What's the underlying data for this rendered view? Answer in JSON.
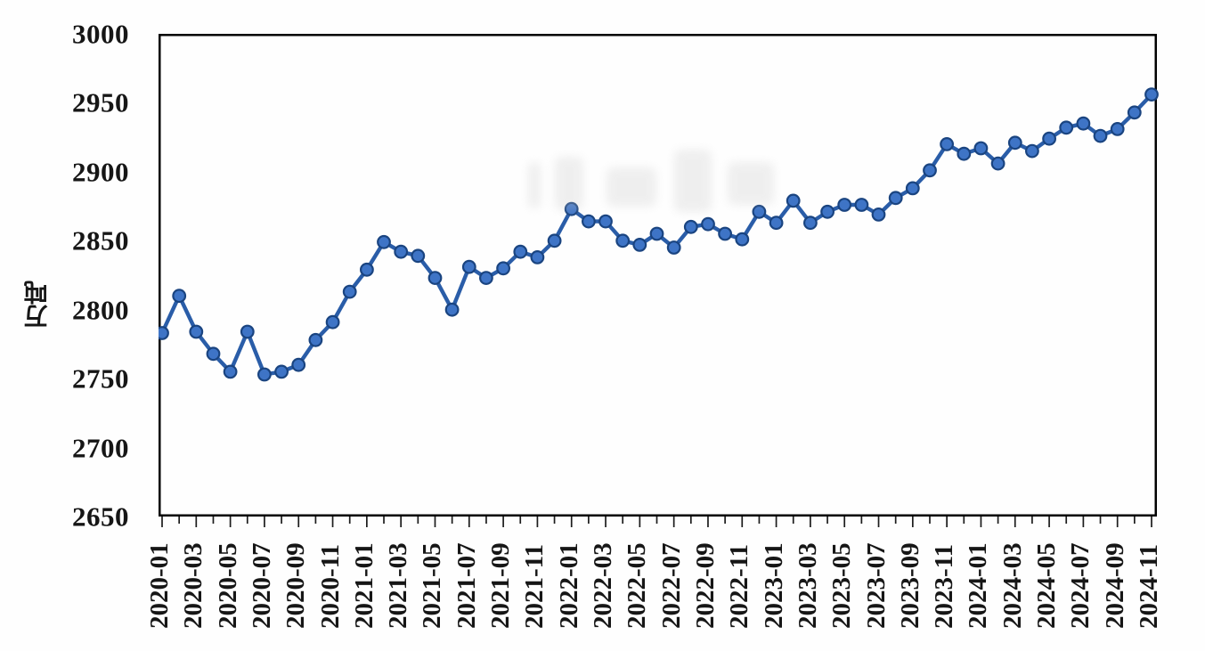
{
  "chart_data": {
    "type": "line",
    "title": "",
    "xlabel": "",
    "ylabel": "万吨",
    "ylim": [
      2650,
      3000
    ],
    "ytick_interval": 50,
    "yticks": [
      2650,
      2700,
      2750,
      2800,
      2850,
      2900,
      2950,
      3000
    ],
    "grid": "off",
    "legend": "none",
    "x": [
      "2020-01",
      "2020-02",
      "2020-03",
      "2020-04",
      "2020-05",
      "2020-06",
      "2020-07",
      "2020-08",
      "2020-09",
      "2020-10",
      "2020-11",
      "2020-12",
      "2021-01",
      "2021-02",
      "2021-03",
      "2021-04",
      "2021-05",
      "2021-06",
      "2021-07",
      "2021-08",
      "2021-09",
      "2021-10",
      "2021-11",
      "2021-12",
      "2022-01",
      "2022-02",
      "2022-03",
      "2022-04",
      "2022-05",
      "2022-06",
      "2022-07",
      "2022-08",
      "2022-09",
      "2022-10",
      "2022-11",
      "2022-12",
      "2023-01",
      "2023-02",
      "2023-03",
      "2023-04",
      "2023-05",
      "2023-06",
      "2023-07",
      "2023-08",
      "2023-09",
      "2023-10",
      "2023-11",
      "2023-12",
      "2024-01",
      "2024-02",
      "2024-03",
      "2024-04",
      "2024-05",
      "2024-06",
      "2024-07",
      "2024-08",
      "2024-09",
      "2024-10",
      "2024-11"
    ],
    "xtick_labels": [
      "2020-01",
      "2020-03",
      "2020-05",
      "2020-07",
      "2020-09",
      "2020-11",
      "2021-01",
      "2021-03",
      "2021-05",
      "2021-07",
      "2021-09",
      "2021-11",
      "2022-01",
      "2022-03",
      "2022-05",
      "2022-07",
      "2022-09",
      "2022-11",
      "2023-01",
      "2023-03",
      "2023-05",
      "2023-07",
      "2023-09",
      "2023-11",
      "2024-01",
      "2024-03",
      "2024-05",
      "2024-07",
      "2024-09",
      "2024-11"
    ],
    "series": [
      {
        "name": "",
        "values": [
          2783,
          2810,
          2784,
          2768,
          2755,
          2784,
          2753,
          2755,
          2760,
          2778,
          2791,
          2813,
          2829,
          2849,
          2842,
          2839,
          2823,
          2800,
          2831,
          2823,
          2830,
          2842,
          2838,
          2850,
          2873,
          2864,
          2864,
          2850,
          2847,
          2855,
          2845,
          2860,
          2862,
          2855,
          2851,
          2871,
          2863,
          2879,
          2863,
          2871,
          2876,
          2876,
          2869,
          2881,
          2888,
          2901,
          2920,
          2913,
          2917,
          2906,
          2921,
          2915,
          2924,
          2932,
          2935,
          2926,
          2931,
          2943,
          2956
        ]
      }
    ],
    "colors": {
      "line": "#2a5da8",
      "marker_fill": "#3e74c6",
      "marker_stroke": "#1a4480",
      "axis": "#000000",
      "text": "#161616"
    }
  }
}
